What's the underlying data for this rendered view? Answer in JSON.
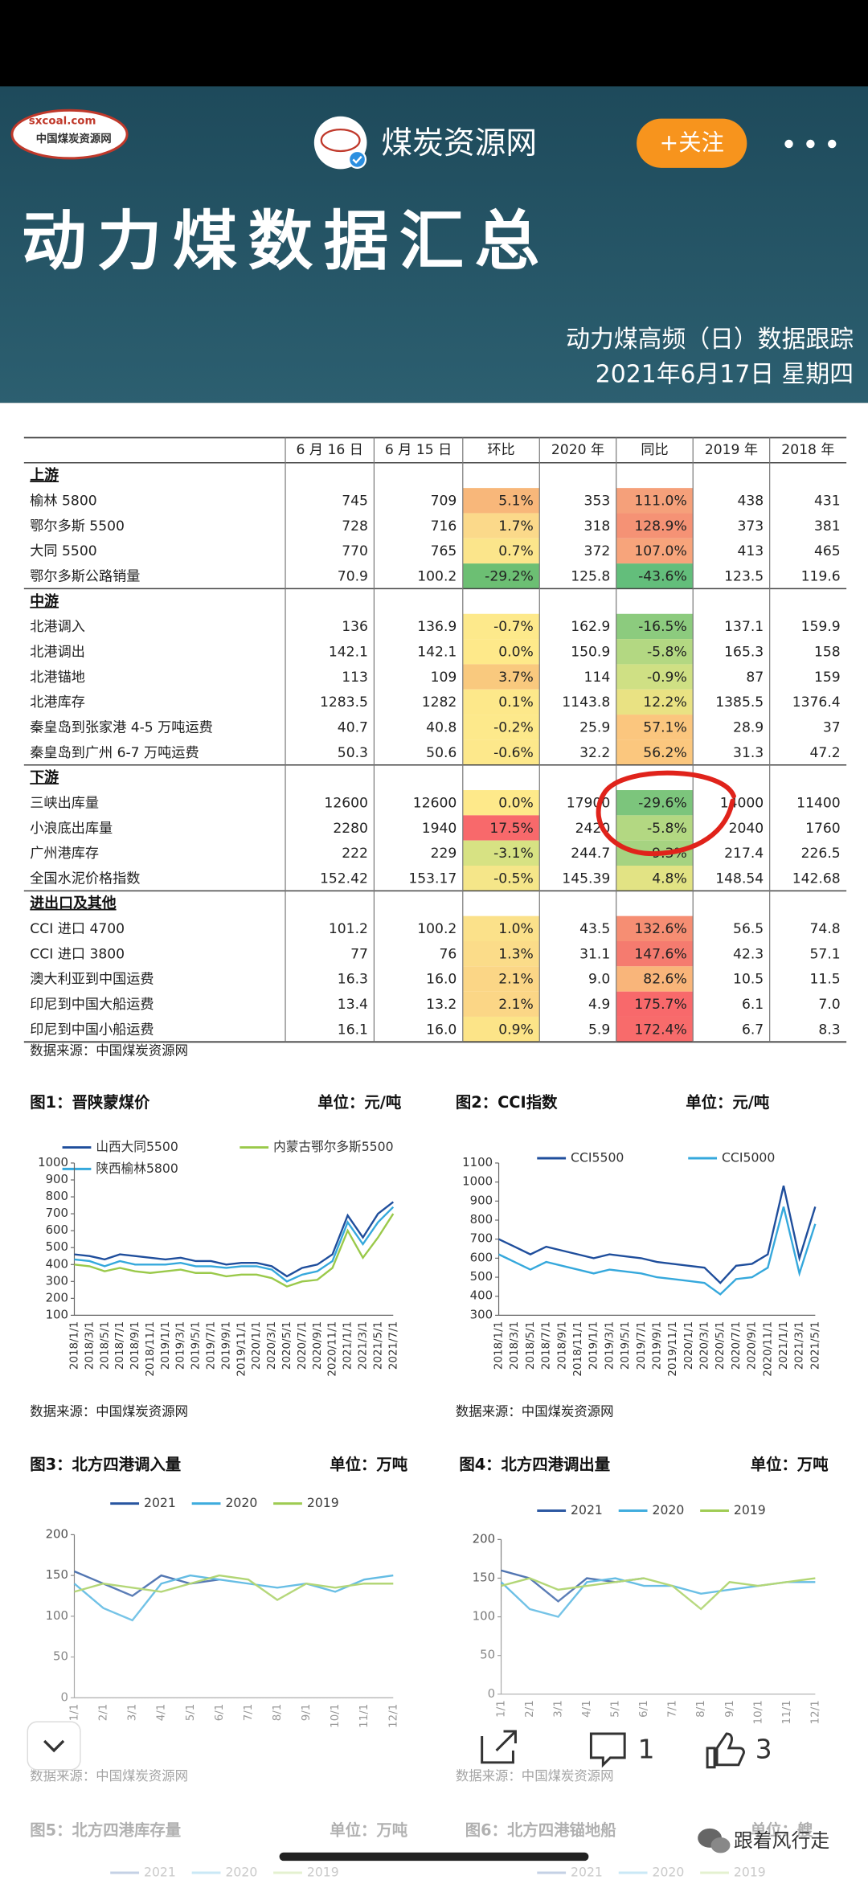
{
  "header": {
    "logo_text": "sxcoal.com",
    "logo_sub": "中国煤炭资源网",
    "account": "煤炭资源网",
    "follow": "+关注",
    "title": "动力煤数据汇总",
    "subtitle": "动力煤高频（日）数据跟踪",
    "date": "2021年6月17日 星期四"
  },
  "table": {
    "columns": [
      "6 月 16 日",
      "6 月 15 日",
      "环比",
      "2020 年",
      "同比",
      "2019 年",
      "2018 年"
    ],
    "sections": [
      {
        "name": "上游",
        "rows": [
          {
            "cells": [
              "榆林 5800",
              "745",
              "709",
              "5.1%",
              "353",
              "111.0%",
              "438",
              "431"
            ],
            "colors": [
              "#f8b77a",
              "#f5a07a"
            ]
          },
          {
            "cells": [
              "鄂尔多斯 5500",
              "728",
              "716",
              "1.7%",
              "318",
              "128.9%",
              "373",
              "381"
            ],
            "colors": [
              "#fbd98a",
              "#f59275"
            ]
          },
          {
            "cells": [
              "大同 5500",
              "770",
              "765",
              "0.7%",
              "372",
              "107.0%",
              "413",
              "465"
            ],
            "colors": [
              "#fbe58b",
              "#f7a47b"
            ]
          },
          {
            "cells": [
              "鄂尔多斯公路销量",
              "70.9",
              "100.2",
              "-29.2%",
              "125.8",
              "-43.6%",
              "123.5",
              "119.6"
            ],
            "colors": [
              "#6cbf73",
              "#63be7b"
            ]
          }
        ]
      },
      {
        "name": "中游",
        "rows": [
          {
            "cells": [
              "北港调入",
              "136",
              "136.9",
              "-0.7%",
              "162.9",
              "-16.5%",
              "137.1",
              "159.9"
            ],
            "colors": [
              "#fde98b",
              "#8ccb7e"
            ]
          },
          {
            "cells": [
              "北港调出",
              "142.1",
              "142.1",
              "0.0%",
              "150.9",
              "-5.8%",
              "165.3",
              "158"
            ],
            "colors": [
              "#fee98a",
              "#b3d882"
            ]
          },
          {
            "cells": [
              "北港锚地",
              "113",
              "109",
              "3.7%",
              "114",
              "-0.9%",
              "87",
              "159"
            ],
            "colors": [
              "#f9c97e",
              "#cfe084"
            ]
          },
          {
            "cells": [
              "北港库存",
              "1283.5",
              "1282",
              "0.1%",
              "1143.8",
              "12.2%",
              "1385.5",
              "1376.4"
            ],
            "colors": [
              "#fde88a",
              "#e9e283"
            ]
          },
          {
            "cells": [
              "秦皇岛到张家港 4-5 万吨运费",
              "40.7",
              "40.8",
              "-0.2%",
              "25.9",
              "57.1%",
              "28.9",
              "37"
            ],
            "colors": [
              "#fde98b",
              "#fbc67e"
            ]
          },
          {
            "cells": [
              "秦皇岛到广州 6-7 万吨运费",
              "50.3",
              "50.6",
              "-0.6%",
              "32.2",
              "56.2%",
              "31.3",
              "47.2"
            ],
            "colors": [
              "#fde88b",
              "#fbc77e"
            ]
          }
        ]
      },
      {
        "name": "下游",
        "rows": [
          {
            "cells": [
              "三峡出库量",
              "12600",
              "12600",
              "0.0%",
              "17900",
              "-29.6%",
              "14000",
              "11400"
            ],
            "colors": [
              "#fee98a",
              "#7cc57c"
            ]
          },
          {
            "cells": [
              "小浪底出库量",
              "2280",
              "1940",
              "17.5%",
              "2420",
              "-5.8%",
              "2040",
              "1760"
            ],
            "colors": [
              "#f8696b",
              "#b3d882"
            ]
          },
          {
            "cells": [
              "广州港库存",
              "222",
              "229",
              "-3.1%",
              "244.7",
              "-9.3%",
              "217.4",
              "226.5"
            ],
            "colors": [
              "#d7e283",
              "#a6d381"
            ]
          },
          {
            "cells": [
              "全国水泥价格指数",
              "152.42",
              "153.17",
              "-0.5%",
              "145.39",
              "4.8%",
              "148.54",
              "142.68"
            ],
            "colors": [
              "#f5e689",
              "#e2e384"
            ]
          }
        ]
      },
      {
        "name": "进出口及其他",
        "rows": [
          {
            "cells": [
              "CCI 进口 4700",
              "101.2",
              "100.2",
              "1.0%",
              "43.5",
              "132.6%",
              "56.5",
              "74.8"
            ],
            "colors": [
              "#fbe18a",
              "#f68e73"
            ]
          },
          {
            "cells": [
              "CCI 进口 3800",
              "77",
              "76",
              "1.3%",
              "31.1",
              "147.6%",
              "42.3",
              "57.1"
            ],
            "colors": [
              "#fbdc89",
              "#f57b6f"
            ]
          },
          {
            "cells": [
              "澳大利亚到中国运费",
              "16.3",
              "16.0",
              "2.1%",
              "9.0",
              "82.6%",
              "10.5",
              "11.5"
            ],
            "colors": [
              "#fbd686",
              "#f9b57a"
            ]
          },
          {
            "cells": [
              "印尼到中国大船运费",
              "13.4",
              "13.2",
              "2.1%",
              "4.9",
              "175.7%",
              "6.1",
              "7.0"
            ],
            "colors": [
              "#fbd686",
              "#f8696b"
            ]
          },
          {
            "cells": [
              "印尼到中国小船运费",
              "16.1",
              "16.0",
              "0.9%",
              "5.9",
              "172.4%",
              "6.7",
              "8.3"
            ],
            "colors": [
              "#fce488",
              "#f86b6b"
            ]
          }
        ]
      }
    ],
    "source": "数据来源：中国煤炭资源网"
  },
  "chart_data": [
    {
      "type": "line",
      "title": "图1：晋陕蒙煤价",
      "unit": "单位：元/吨",
      "categories": [
        "2018/1/1",
        "2018/3/1",
        "2018/5/1",
        "2018/7/1",
        "2018/9/1",
        "2018/11/1",
        "2019/1/1",
        "2019/3/1",
        "2019/5/1",
        "2019/7/1",
        "2019/9/1",
        "2019/11/1",
        "2020/1/1",
        "2020/3/1",
        "2020/5/1",
        "2020/7/1",
        "2020/9/1",
        "2020/11/1",
        "2021/1/1",
        "2021/3/1",
        "2021/5/1",
        "2021/7/1"
      ],
      "series": [
        {
          "name": "山西大同5500",
          "color": "#1f4e9c",
          "values": [
            460,
            450,
            430,
            460,
            450,
            440,
            430,
            440,
            420,
            420,
            400,
            410,
            410,
            390,
            330,
            380,
            400,
            460,
            690,
            560,
            700,
            770
          ]
        },
        {
          "name": "内蒙古鄂尔多斯5500",
          "color": "#9ac94a",
          "values": [
            400,
            390,
            360,
            380,
            360,
            350,
            360,
            370,
            350,
            350,
            330,
            340,
            340,
            320,
            270,
            300,
            310,
            380,
            600,
            440,
            560,
            700
          ]
        },
        {
          "name": "陕西榆林5800",
          "color": "#35a8dc",
          "values": [
            430,
            420,
            390,
            420,
            400,
            400,
            400,
            410,
            390,
            390,
            380,
            390,
            390,
            370,
            300,
            340,
            360,
            420,
            650,
            520,
            650,
            740
          ]
        }
      ],
      "ylim": [
        100,
        1000
      ],
      "yticks": [
        100,
        200,
        300,
        400,
        500,
        600,
        700,
        800,
        900,
        1000
      ],
      "source": "数据来源：中国煤炭资源网"
    },
    {
      "type": "line",
      "title": "图2：CCI指数",
      "unit": "单位：元/吨",
      "categories": [
        "2018/1/1",
        "2018/3/1",
        "2018/5/1",
        "2018/7/1",
        "2018/9/1",
        "2018/11/1",
        "2019/1/1",
        "2019/3/1",
        "2019/5/1",
        "2019/7/1",
        "2019/9/1",
        "2019/11/1",
        "2020/1/1",
        "2020/3/1",
        "2020/5/1",
        "2020/7/1",
        "2020/9/1",
        "2020/11/1",
        "2021/1/1",
        "2021/3/1",
        "2021/5/1"
      ],
      "series": [
        {
          "name": "CCI5500",
          "color": "#1f4e9c",
          "values": [
            700,
            660,
            620,
            660,
            640,
            620,
            600,
            620,
            610,
            600,
            580,
            570,
            560,
            550,
            470,
            560,
            570,
            620,
            980,
            600,
            870
          ]
        },
        {
          "name": "CCI5000",
          "color": "#35a8dc",
          "values": [
            620,
            580,
            540,
            580,
            560,
            540,
            520,
            540,
            530,
            520,
            500,
            490,
            480,
            470,
            410,
            490,
            500,
            550,
            870,
            520,
            780
          ]
        }
      ],
      "ylim": [
        300,
        1100
      ],
      "yticks": [
        300,
        400,
        500,
        600,
        700,
        800,
        900,
        1000,
        1100
      ],
      "source": "数据来源：中国煤炭资源网"
    },
    {
      "type": "line",
      "title": "图3：北方四港调入量",
      "unit": "单位：万吨",
      "categories": [
        "1/1",
        "2/1",
        "3/1",
        "4/1",
        "5/1",
        "6/1",
        "7/1",
        "8/1",
        "9/1",
        "10/1",
        "11/1",
        "12/1"
      ],
      "series": [
        {
          "name": "2021",
          "color": "#1f4e9c",
          "values": [
            155,
            140,
            125,
            150,
            140,
            145,
            null,
            null,
            null,
            null,
            null,
            null
          ]
        },
        {
          "name": "2020",
          "color": "#35a8dc",
          "values": [
            140,
            110,
            95,
            140,
            150,
            145,
            140,
            135,
            140,
            130,
            145,
            150
          ]
        },
        {
          "name": "2019",
          "color": "#9ac94a",
          "values": [
            130,
            140,
            135,
            130,
            140,
            150,
            145,
            120,
            140,
            135,
            140,
            140
          ]
        }
      ],
      "ylim": [
        0,
        200
      ],
      "yticks": [
        0,
        50,
        100,
        150,
        200
      ],
      "source": "数据来源：中国煤炭资源网"
    },
    {
      "type": "line",
      "title": "图4：北方四港调出量",
      "unit": "单位：万吨",
      "categories": [
        "1/1",
        "2/1",
        "3/1",
        "4/1",
        "5/1",
        "6/1",
        "7/1",
        "8/1",
        "9/1",
        "10/1",
        "11/1",
        "12/1"
      ],
      "series": [
        {
          "name": "2021",
          "color": "#1f4e9c",
          "values": [
            160,
            150,
            120,
            150,
            145,
            150,
            null,
            null,
            null,
            null,
            null,
            null
          ]
        },
        {
          "name": "2020",
          "color": "#35a8dc",
          "values": [
            145,
            110,
            100,
            145,
            150,
            140,
            140,
            130,
            135,
            140,
            145,
            145
          ]
        },
        {
          "name": "2019",
          "color": "#9ac94a",
          "values": [
            140,
            150,
            135,
            140,
            145,
            150,
            140,
            110,
            145,
            140,
            145,
            150
          ]
        }
      ],
      "ylim": [
        0,
        200
      ],
      "yticks": [
        0,
        50,
        100,
        150,
        200
      ],
      "source": "数据来源：中国煤炭资源网"
    },
    {
      "type": "line",
      "title": "图5：北方四港库存量",
      "unit": "单位：万吨",
      "series": [
        {
          "name": "2021",
          "color": "#1f4e9c"
        },
        {
          "name": "2020",
          "color": "#35a8dc"
        },
        {
          "name": "2019",
          "color": "#9ac94a"
        }
      ]
    },
    {
      "type": "line",
      "title": "图6：北方四港锚地船",
      "unit": "单位：艘",
      "series": [
        {
          "name": "2021",
          "color": "#1f4e9c"
        },
        {
          "name": "2020",
          "color": "#35a8dc"
        },
        {
          "name": "2019",
          "color": "#9ac94a"
        }
      ]
    }
  ],
  "toolbar": {
    "comments": "1",
    "likes": "3",
    "watermark": "跟着风行走"
  }
}
